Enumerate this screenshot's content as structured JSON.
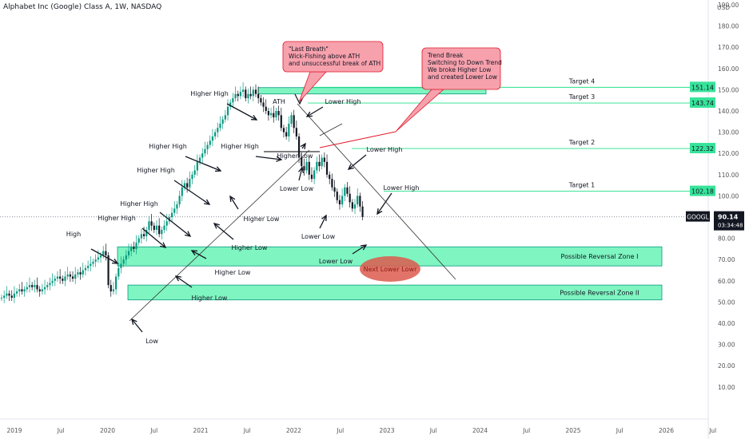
{
  "header": {
    "title": "Alphabet Inc (Google) Class A, 1W, NASDAQ"
  },
  "price_axis": {
    "currency": "USD"
  },
  "ticker": {
    "symbol": "GOOGL",
    "price": "90.14",
    "countdown": "03:34:48"
  },
  "colors": {
    "up": "#089981",
    "down": "#131722",
    "zone_fill": "#7ff5c1",
    "zone_stroke": "#089981",
    "target_line": "#22e08a",
    "target_label_bg": "#36e39a",
    "callout_bg": "#f7a1ad",
    "callout_border": "#e0182a",
    "ellipse_fill": "#dc5a4e",
    "ellipse_text": "#8b1a14"
  },
  "chart_data": {
    "type": "candlestick",
    "title": "Alphabet Inc (Google) Class A, 1W, NASDAQ",
    "x_tick_labels": [
      "2019",
      "Jul",
      "2020",
      "Jul",
      "2021",
      "Jul",
      "2022",
      "Jul",
      "2023",
      "Jul",
      "2024",
      "Jul",
      "2025",
      "Jul",
      "2026",
      "Jul"
    ],
    "y_ticks": [
      10,
      20,
      30,
      40,
      50,
      60,
      70,
      80,
      90,
      100,
      110,
      120,
      130,
      140,
      150,
      160,
      170,
      180,
      190
    ],
    "ylim": [
      5,
      200
    ],
    "grid": false,
    "current_price": 90.14,
    "targets": [
      {
        "name": "Target 4",
        "value": 151.14,
        "label": "151.14"
      },
      {
        "name": "Target 3",
        "value": 143.74,
        "label": "143.74"
      },
      {
        "name": "Target 2",
        "value": 122.32,
        "label": "122.32"
      },
      {
        "name": "Target 1",
        "value": 102.18,
        "label": "102.18"
      }
    ],
    "zones": [
      {
        "name": "Possible Reversal Zone I",
        "low": 67,
        "high": 76
      },
      {
        "name": "Possible Reversal Zone II",
        "low": 51,
        "high": 58
      },
      {
        "name": "",
        "low": 148,
        "high": 151
      }
    ],
    "weekly_close": [
      52,
      53,
      54,
      53,
      52,
      54,
      55,
      56,
      55,
      56,
      57,
      58,
      57,
      58,
      56,
      55,
      56,
      57,
      58,
      59,
      60,
      61,
      62,
      61,
      60,
      62,
      63,
      62,
      61,
      63,
      64,
      63,
      65,
      66,
      67,
      68,
      69,
      70,
      71,
      72,
      74,
      72,
      58,
      55,
      56,
      62,
      66,
      68,
      70,
      72,
      74,
      76,
      75,
      78,
      80,
      82,
      81,
      84,
      88,
      86,
      84,
      86,
      82,
      84,
      86,
      88,
      90,
      92,
      94,
      96,
      100,
      104,
      106,
      104,
      108,
      110,
      112,
      116,
      118,
      120,
      122,
      124,
      126,
      128,
      130,
      132,
      134,
      136,
      138,
      142,
      144,
      146,
      148,
      147,
      149,
      150,
      146,
      148,
      147,
      150,
      148,
      146,
      144,
      142,
      140,
      138,
      139,
      137,
      140,
      138,
      132,
      130,
      128,
      134,
      138,
      132,
      128,
      118,
      114,
      112,
      116,
      110,
      108,
      112,
      116,
      114,
      118,
      116,
      110,
      108,
      104,
      102,
      98,
      96,
      100,
      104,
      101,
      97,
      94,
      96,
      100,
      95,
      90
    ],
    "annotations": [
      {
        "text": "High",
        "date": "2020-02",
        "price": 76
      },
      {
        "text": "Higher High",
        "date": "2020-08",
        "price": 82
      },
      {
        "text": "Higher High",
        "date": "2020-11",
        "price": 88
      },
      {
        "text": "Higher High",
        "date": "2021-01",
        "price": 99
      },
      {
        "text": "Higher High",
        "date": "2021-03",
        "price": 109
      },
      {
        "text": "Higher High",
        "date": "2021-05",
        "price": 121
      },
      {
        "text": "Higher High",
        "date": "2021-09",
        "price": 147
      },
      {
        "text": "ATH",
        "date": "2021-11",
        "price": 151
      },
      {
        "text": "Lower High",
        "date": "2022-02",
        "price": 150
      },
      {
        "text": "Lower High",
        "date": "2022-08",
        "price": 122
      },
      {
        "text": "Lower High",
        "date": "2022-11",
        "price": 102
      },
      {
        "text": "Low",
        "date": "2020-03",
        "price": 52
      },
      {
        "text": "Higher Low",
        "date": "2020-06",
        "price": 70
      },
      {
        "text": "Higher Low",
        "date": "2020-09",
        "price": 70
      },
      {
        "text": "Higher Low",
        "date": "2021-02",
        "price": 92
      },
      {
        "text": "Higher Low",
        "date": "2021-03",
        "price": 101
      },
      {
        "text": "Higher Low",
        "date": "2022-01",
        "price": 133
      },
      {
        "text": "Lower Low",
        "date": "2022-03",
        "price": 130
      },
      {
        "text": "Lower Low",
        "date": "2022-06",
        "price": 104
      },
      {
        "text": "Lower Low",
        "date": "2022-10",
        "price": 86
      }
    ],
    "callouts": [
      {
        "lines": [
          "\"Last Breath\"",
          "Wick-Fishing above ATH",
          "and unsuccessful break of ATH"
        ]
      },
      {
        "lines": [
          "Trend Break",
          "Switching to Down Trend",
          "We broke Higher Low",
          "and created Lower Low"
        ]
      }
    ],
    "ellipse_label": "Next Lower Lowr"
  }
}
